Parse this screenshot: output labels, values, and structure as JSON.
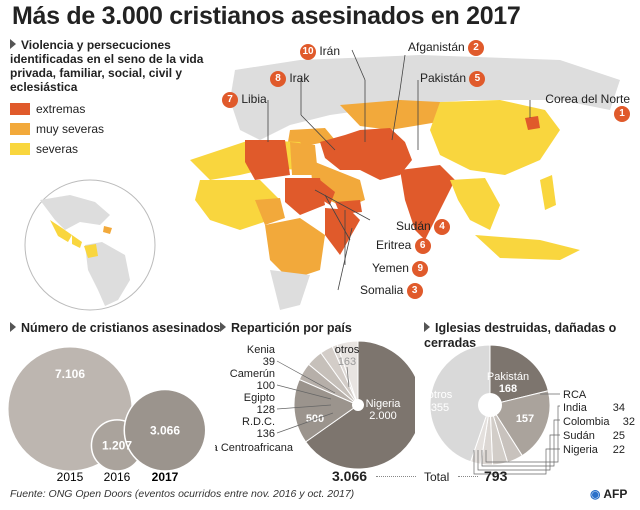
{
  "title": "Más de 3.000 cristianos asesinados en 2017",
  "legend": {
    "title": "Violencia y persecuciones identificadas en el seno de la vida privada, familiar, social, civil y eclesiástica",
    "items": [
      {
        "label": "extremas",
        "color": "#e05a2b"
      },
      {
        "label": "muy severas",
        "color": "#f2a93b"
      },
      {
        "label": "severas",
        "color": "#f9d63e"
      }
    ]
  },
  "countries": [
    {
      "rank": "1",
      "name": "Corea del Norte"
    },
    {
      "rank": "2",
      "name": "Afganistán"
    },
    {
      "rank": "3",
      "name": "Somalia"
    },
    {
      "rank": "4",
      "name": "Sudán"
    },
    {
      "rank": "5",
      "name": "Pakistán"
    },
    {
      "rank": "6",
      "name": "Eritrea"
    },
    {
      "rank": "7",
      "name": "Libia"
    },
    {
      "rank": "8",
      "name": "Irak"
    },
    {
      "rank": "9",
      "name": "Yemen"
    },
    {
      "rank": "10",
      "name": "Irán"
    }
  ],
  "killed": {
    "heading": "Número de cristianos asesinados",
    "bubbles": [
      {
        "year": "2015",
        "value": "7.106",
        "num": 7106
      },
      {
        "year": "2016",
        "value": "1.207",
        "num": 1207
      },
      {
        "year": "2017",
        "value": "3.066",
        "num": 3066
      }
    ]
  },
  "distribution": {
    "heading": "Repartición por país",
    "slices": [
      {
        "label": "Nigeria",
        "value": "2.000",
        "num": 2000
      },
      {
        "label": "República Centroafricana",
        "value": "500",
        "num": 500
      },
      {
        "label": "R.D.C.",
        "value": "136",
        "num": 136
      },
      {
        "label": "Egipto",
        "value": "128",
        "num": 128
      },
      {
        "label": "Camerún",
        "value": "100",
        "num": 100
      },
      {
        "label": "Kenia",
        "value": "39",
        "num": 39
      },
      {
        "label": "otros",
        "value": "163",
        "num": 163
      }
    ],
    "total_value": "3.066"
  },
  "churches": {
    "heading": "Iglesias destruidas, dañadas o cerradas",
    "slices": [
      {
        "label": "Pakistán",
        "value": "168",
        "num": 168
      },
      {
        "label": "RCA",
        "value": "157",
        "num": 157
      },
      {
        "label": "India",
        "value": "34",
        "num": 34
      },
      {
        "label": "Colombia",
        "value": "32",
        "num": 32
      },
      {
        "label": "Sudán",
        "value": "25",
        "num": 25
      },
      {
        "label": "Nigeria",
        "value": "22",
        "num": 22
      },
      {
        "label": "otros",
        "value": "355",
        "num": 355
      }
    ],
    "total_value": "793"
  },
  "total_label": "Total",
  "source": "Fuente: ONG Open Doors (eventos ocurridos entre nov. 2016 y oct. 2017)",
  "credit": "AFP"
}
